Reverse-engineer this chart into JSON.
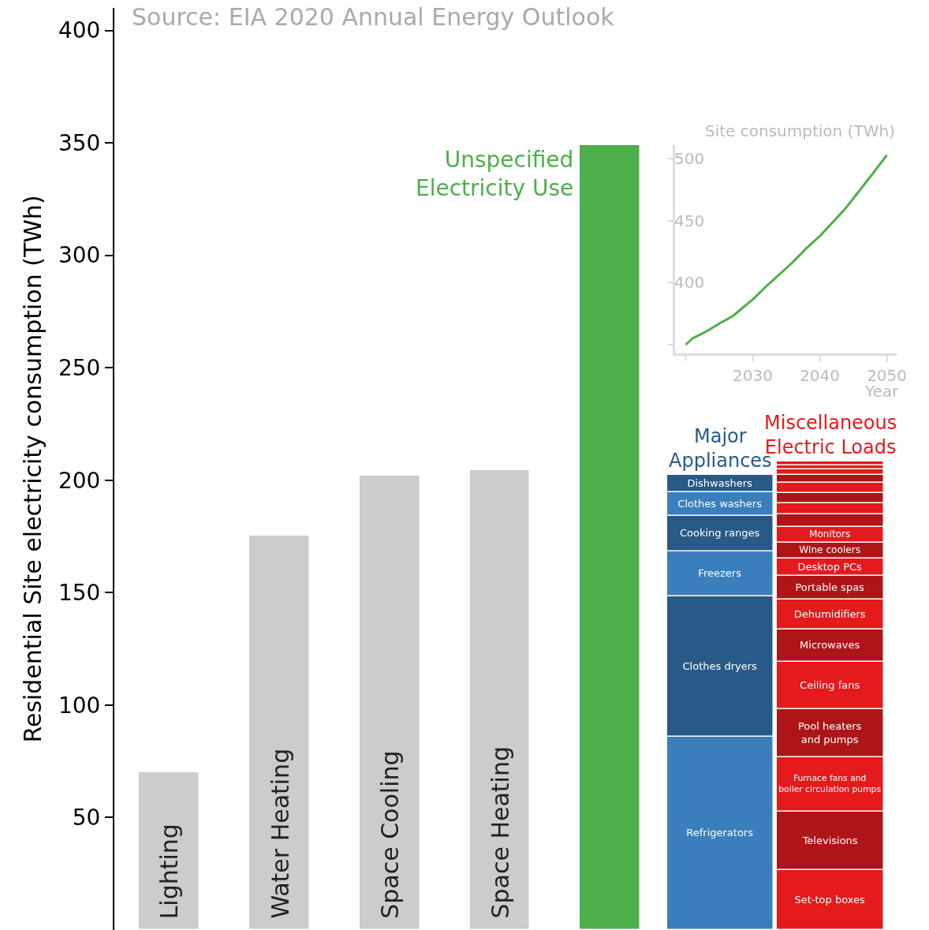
{
  "chart_data": [
    {
      "type": "bar",
      "stacked": true,
      "categories": [
        "Lighting",
        "Water Heating",
        "Space Cooling",
        "Space Heating",
        "Unspecified Electricity Use",
        "Major Appliances",
        "Miscellaneous Electric Loads"
      ],
      "series": [
        {
          "colors": [
            "#cccccc",
            "#cccccc",
            "#cccccc",
            "#cccccc",
            "#4daf4a",
            null,
            null
          ],
          "values": [
            70,
            175.4,
            202,
            204.4,
            349,
            null,
            null
          ]
        },
        {
          "name": "Refrigerators",
          "color": "#3a7fbb",
          "values": [
            null,
            null,
            null,
            null,
            null,
            85.8,
            null
          ]
        },
        {
          "name": "Clothes dryers",
          "color": "#285a87",
          "values": [
            null,
            null,
            null,
            null,
            null,
            62.7,
            null
          ]
        },
        {
          "name": "Freezers",
          "color": "#3a7fbb",
          "values": [
            null,
            null,
            null,
            null,
            null,
            19.7,
            null
          ]
        },
        {
          "name": "Cooking ranges",
          "color": "#285a87",
          "values": [
            null,
            null,
            null,
            null,
            null,
            15.8,
            null
          ]
        },
        {
          "name": "Clothes washers",
          "color": "#3a7fbb",
          "values": [
            null,
            null,
            null,
            null,
            null,
            10.7,
            null
          ]
        },
        {
          "name": "Dishwashers",
          "color": "#285a87",
          "values": [
            null,
            null,
            null,
            null,
            null,
            7.5,
            null
          ]
        },
        {
          "name": "Set-top boxes",
          "color": "#e41a1c",
          "values": [
            null,
            null,
            null,
            null,
            null,
            null,
            26.6
          ]
        },
        {
          "name": "Televisions",
          "color": "#ad1519",
          "values": [
            null,
            null,
            null,
            null,
            null,
            null,
            25.9
          ]
        },
        {
          "name": "Furnace fans and\nboiler circulation pumps",
          "color": "#e41a1c",
          "values": [
            null,
            null,
            null,
            null,
            null,
            null,
            24.2
          ]
        },
        {
          "name": "Pool heaters\nand pumps",
          "color": "#ad1519",
          "values": [
            null,
            null,
            null,
            null,
            null,
            null,
            21.4
          ]
        },
        {
          "name": "Ceiling fans",
          "color": "#e41a1c",
          "values": [
            null,
            null,
            null,
            null,
            null,
            null,
            21
          ]
        },
        {
          "name": "Microwaves",
          "color": "#ad1519",
          "values": [
            null,
            null,
            null,
            null,
            null,
            null,
            14.7
          ]
        },
        {
          "name": "Dehumidifiers",
          "color": "#e41a1c",
          "values": [
            null,
            null,
            null,
            null,
            null,
            null,
            13.3
          ]
        },
        {
          "name": "Portable spas",
          "color": "#ad1519",
          "values": [
            null,
            null,
            null,
            null,
            null,
            null,
            10.3
          ]
        },
        {
          "name": "Desktop PCs",
          "color": "#e41a1c",
          "values": [
            null,
            null,
            null,
            null,
            null,
            null,
            7.9
          ]
        },
        {
          "name": "Wine coolers",
          "color": "#ad1519",
          "values": [
            null,
            null,
            null,
            null,
            null,
            null,
            6.9
          ]
        },
        {
          "name": "Monitors",
          "color": "#e41a1c",
          "values": [
            null,
            null,
            null,
            null,
            null,
            null,
            6.9
          ]
        },
        {
          "color": "#ad1519",
          "values": [
            null,
            null,
            null,
            null,
            null,
            null,
            5.6
          ]
        },
        {
          "color": "#e41a1c",
          "values": [
            null,
            null,
            null,
            null,
            null,
            null,
            5.2
          ]
        },
        {
          "color": "#ad1519",
          "values": [
            null,
            null,
            null,
            null,
            null,
            null,
            4.4
          ]
        },
        {
          "color": "#e41a1c",
          "values": [
            null,
            null,
            null,
            null,
            null,
            null,
            4.4
          ]
        },
        {
          "color": "#ad1519",
          "values": [
            null,
            null,
            null,
            null,
            null,
            null,
            3.5
          ]
        },
        {
          "color": "#e41a1c",
          "values": [
            null,
            null,
            null,
            null,
            null,
            null,
            2.5
          ]
        },
        {
          "color": "#e41a1c",
          "values": [
            null,
            null,
            null,
            null,
            null,
            null,
            2.0
          ]
        },
        {
          "color": "#e41a1c",
          "values": [
            null,
            null,
            null,
            null,
            null,
            null,
            1.8
          ]
        }
      ],
      "ylim": [
        0,
        410
      ],
      "yticks": [
        50,
        100,
        150,
        200,
        250,
        300,
        350,
        400
      ],
      "ylabel": "Residential Site electricity consumption (TWh)",
      "annotations": [
        "Source: EIA 2020 Annual Energy Outlook"
      ],
      "tick_labels": "y",
      "grid": false,
      "legend": false
    },
    {
      "type": "line",
      "x": [
        2020,
        2021,
        2023,
        2025,
        2027,
        2029,
        2030,
        2032,
        2034,
        2036,
        2038,
        2040,
        2042,
        2044,
        2046,
        2048,
        2050
      ],
      "series": [
        {
          "color": "#4daf4a",
          "values": [
            350,
            355,
            360.5,
            367,
            373,
            382,
            386.5,
            397,
            406.7,
            416.7,
            427.7,
            437.5,
            449,
            461,
            474.7,
            488.5,
            502.7
          ]
        }
      ],
      "xlim": [
        2018.4,
        2051.5
      ],
      "xticks": [
        {
          "value": 2020,
          "label": null
        },
        2030,
        2040,
        2050
      ],
      "ylim": [
        343,
        511
      ],
      "yticks": [
        {
          "value": 350,
          "label": null
        },
        400,
        450,
        500
      ],
      "xlabel": "Year",
      "ylabel": "Site consumption (TWh)",
      "marker": "none",
      "grid": false,
      "legend": false
    }
  ]
}
